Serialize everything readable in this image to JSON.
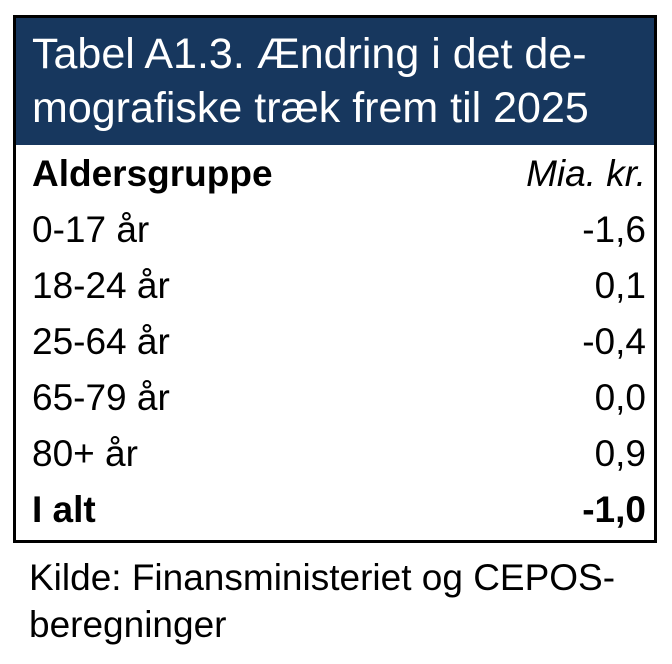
{
  "colors": {
    "header_bg": "#17375E",
    "header_text": "#FFFFFF",
    "border": "#000000",
    "body_bg": "#FFFFFF",
    "body_text": "#000000"
  },
  "table": {
    "title_lines": [
      "Tabel A1.3. Ændring i det de-",
      "mografiske træk frem til 2025"
    ],
    "columns": {
      "label": "Aldersgruppe",
      "unit": "Mia. kr."
    },
    "rows": [
      {
        "label": "0-17 år",
        "value": "-1,6"
      },
      {
        "label": "18-24 år",
        "value": "0,1"
      },
      {
        "label": "25-64 år",
        "value": "-0,4"
      },
      {
        "label": "65-79 år",
        "value": "0,0"
      },
      {
        "label": "80+ år",
        "value": "0,9"
      },
      {
        "label": "I alt",
        "value": "-1,0"
      }
    ]
  },
  "source": "Kilde: Finansministeriet og CEPOS-beregninger",
  "chart_data": {
    "type": "table",
    "title": "Tabel A1.3. Ændring i det demografiske træk frem til 2025",
    "columns": [
      "Aldersgruppe",
      "Mia. kr."
    ],
    "categories": [
      "0-17 år",
      "18-24 år",
      "25-64 år",
      "65-79 år",
      "80+ år",
      "I alt"
    ],
    "values": [
      -1.6,
      0.1,
      -0.4,
      0.0,
      0.9,
      -1.0
    ],
    "unit": "Mia. kr.",
    "source": "Kilde: Finansministeriet og CEPOS-beregninger"
  }
}
